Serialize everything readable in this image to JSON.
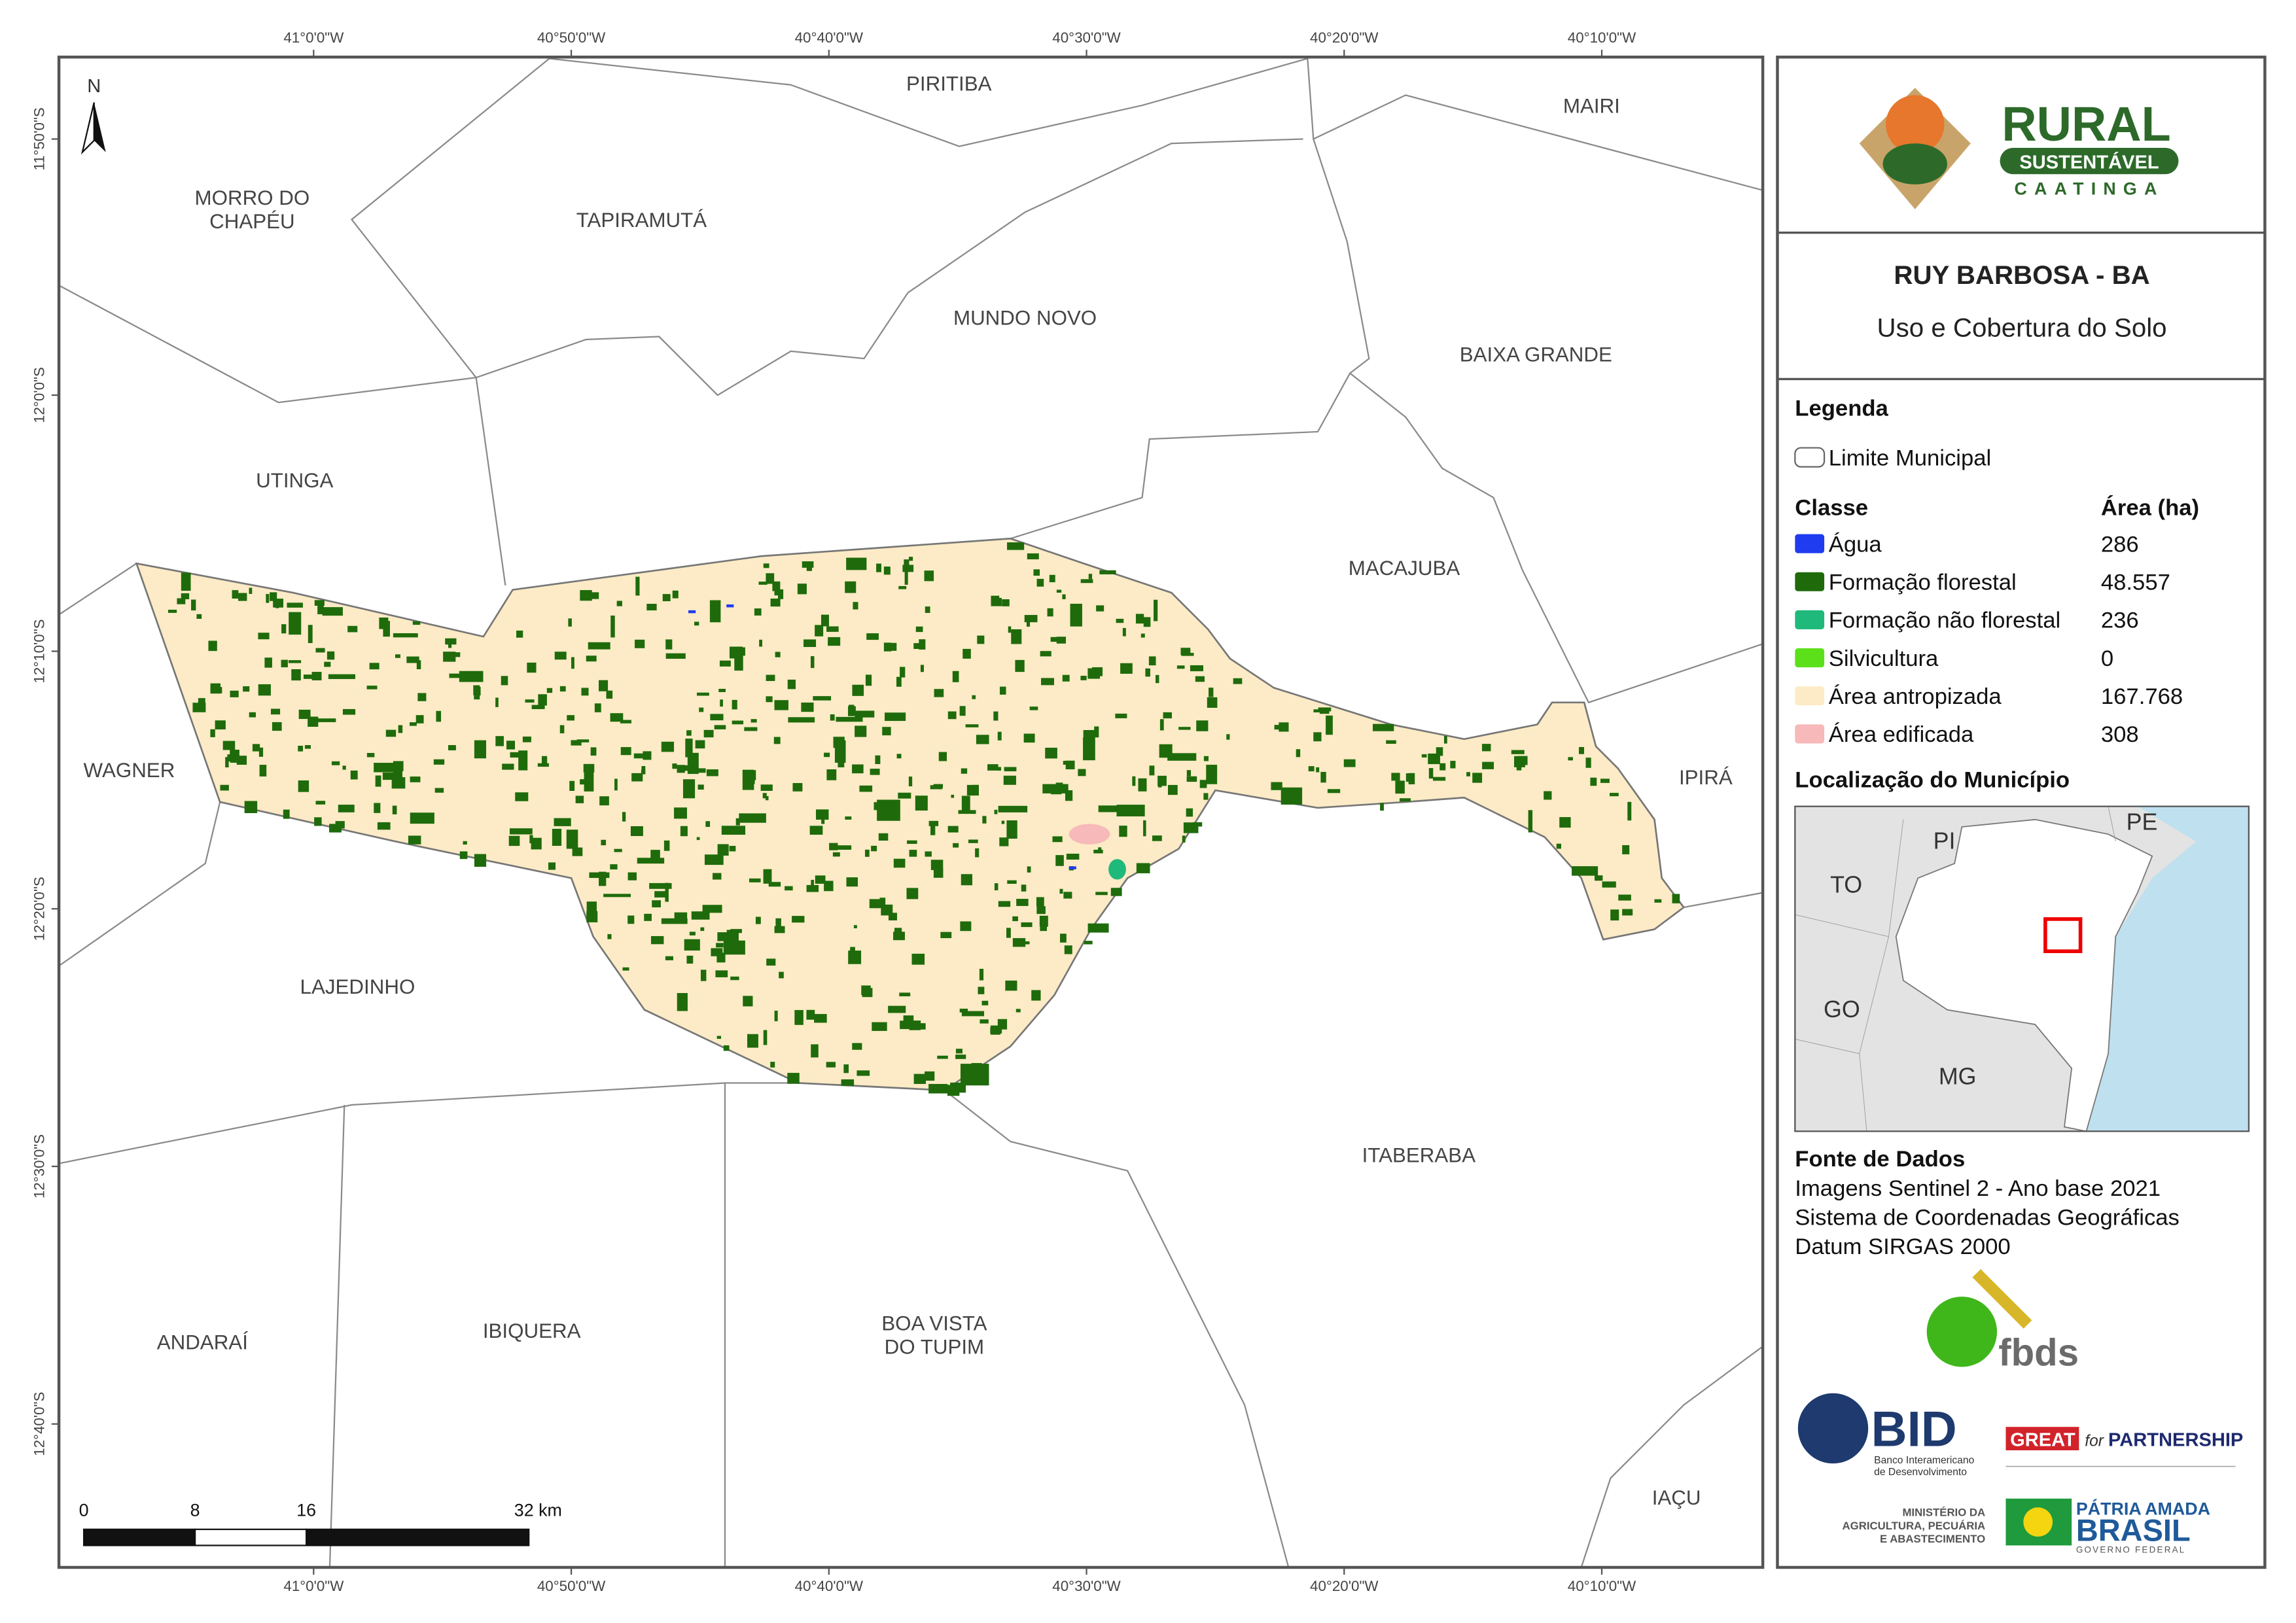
{
  "grid_labels": {
    "top": [
      "41°0'0\"W",
      "40°50'0\"W",
      "40°40'0\"W",
      "40°30'0\"W",
      "40°20'0\"W",
      "40°10'0\"W"
    ],
    "bottom": [
      "41°0'0\"W",
      "40°50'0\"W",
      "40°40'0\"W",
      "40°30'0\"W",
      "40°20'0\"W",
      "40°10'0\"W"
    ],
    "left": [
      "11°50'0\"S",
      "12°0'0\"S",
      "12°10'0\"S",
      "12°20'0\"S",
      "12°30'0\"S",
      "12°40'0\"S"
    ]
  },
  "north": "N",
  "municipalities": [
    [
      "MORRO DO",
      "CHAPÉU"
    ],
    [
      "TAPIRAMUTÁ"
    ],
    [
      "PIRITIBA"
    ],
    [
      "MAIRI"
    ],
    [
      "MUNDO NOVO"
    ],
    [
      "BAIXA GRANDE"
    ],
    [
      "UTINGA"
    ],
    [
      "MACAJUBA"
    ],
    [
      "WAGNER"
    ],
    [
      "IPIRÁ"
    ],
    [
      "LAJEDINHO"
    ],
    [
      "ITABERABA"
    ],
    [
      "ANDARAÍ"
    ],
    [
      "IBIQUERA"
    ],
    [
      "BOA VISTA",
      "DO TUPIM"
    ],
    [
      "IAÇU"
    ]
  ],
  "scale": {
    "ticks": [
      {
        "value": 0,
        "label": "0"
      },
      {
        "value": 8,
        "label": "8"
      },
      {
        "value": 16,
        "label": "16"
      },
      {
        "value": 32,
        "label": "32 km"
      }
    ]
  },
  "header": {
    "logo": {
      "title": "RURAL",
      "badge": "SUSTENTÁVEL",
      "subtitle": "CAATINGA"
    },
    "title": "RUY BARBOSA - BA",
    "subtitle": "Uso e Cobertura do Solo"
  },
  "legend": {
    "title": "Legenda",
    "boundary": "Limite Municipal",
    "class_header": "Classe",
    "area_header": "Área (ha)",
    "classes": [
      {
        "name": "Água",
        "color": "#1f3cf0",
        "area": "286"
      },
      {
        "name": "Formação florestal",
        "color": "#1f6b0c",
        "area": "48.557"
      },
      {
        "name": "Formação não florestal",
        "color": "#20b97c",
        "area": "236"
      },
      {
        "name": "Silvicultura",
        "color": "#5ce01a",
        "area": "0"
      },
      {
        "name": "Área antropizada",
        "color": "#fcebc6",
        "area": "167.768"
      },
      {
        "name": "Área edificada",
        "color": "#f7b9b9",
        "area": "308"
      }
    ]
  },
  "location": {
    "title": "Localização do Município",
    "labels": [
      "PI",
      "PE",
      "TO",
      "GO",
      "MG"
    ]
  },
  "sources": {
    "title": "Fonte de Dados",
    "lines": [
      "Imagens Sentinel 2 - Ano base 2021",
      "Sistema de Coordenadas Geográficas",
      "Datum SIRGAS 2000"
    ]
  },
  "logos": {
    "fbds": "fbds",
    "bid": "BID",
    "bid_lines": [
      "Banco Interamericano",
      "de Desenvolvimento"
    ],
    "great": "GREAT",
    "great_for": "for",
    "great_partnership": "PARTNERSHIP",
    "ministry": [
      "MINISTÉRIO DA",
      "AGRICULTURA, PECUÁRIA",
      "E ABASTECIMENTO"
    ],
    "patria": "PÁTRIA AMADA",
    "brasil": "BRASIL",
    "governo": "GOVERNO FEDERAL"
  }
}
